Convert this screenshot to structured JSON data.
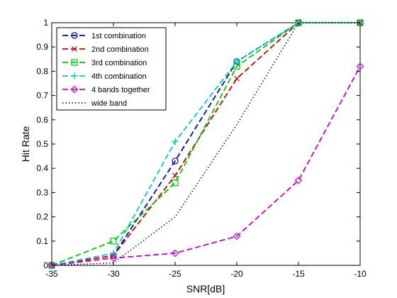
{
  "chart_data": {
    "type": "line",
    "title": "",
    "xlabel": "SNR[dB]",
    "ylabel": "Hit Rate",
    "xlim": [
      -35,
      -10
    ],
    "ylim": [
      0,
      1
    ],
    "x_ticks": [
      -35,
      -30,
      -25,
      -20,
      -15,
      -10
    ],
    "y_ticks": [
      0,
      0.1,
      0.2,
      0.3,
      0.4,
      0.5,
      0.6,
      0.7,
      0.8,
      0.9,
      1
    ],
    "grid": false,
    "legend_position": "top-left",
    "x": [
      -35,
      -30,
      -25,
      -20,
      -15,
      -10
    ],
    "series": [
      {
        "name": "1st combination",
        "values": [
          0,
          0.04,
          0.43,
          0.84,
          1,
          1
        ],
        "color": "#0000cc",
        "dash": "dashed",
        "marker": "circle"
      },
      {
        "name": "2nd combination",
        "values": [
          0,
          0.04,
          0.37,
          0.77,
          1,
          1
        ],
        "color": "#cc0000",
        "dash": "dashed",
        "marker": "x"
      },
      {
        "name": "3rd combination",
        "values": [
          0,
          0.1,
          0.34,
          0.82,
          1,
          1
        ],
        "color": "#00cc00",
        "dash": "dashed",
        "marker": "square"
      },
      {
        "name": "4th combination",
        "values": [
          0,
          0.05,
          0.51,
          0.84,
          1,
          1
        ],
        "color": "#00cccc",
        "dash": "dashed",
        "marker": "plus"
      },
      {
        "name": "4 bands together",
        "values": [
          0,
          0.03,
          0.05,
          0.12,
          0.35,
          0.82
        ],
        "color": "#cc00cc",
        "dash": "dashed",
        "marker": "diamond"
      },
      {
        "name": "wide band",
        "points": [
          [
            -35,
            0
          ],
          [
            -30,
            0.01
          ],
          [
            -25,
            0.2
          ],
          [
            -20,
            0.58
          ],
          [
            -15,
            1
          ],
          [
            -10,
            1
          ]
        ],
        "color": "#000000",
        "dash": "dotted",
        "marker": "none"
      }
    ]
  }
}
